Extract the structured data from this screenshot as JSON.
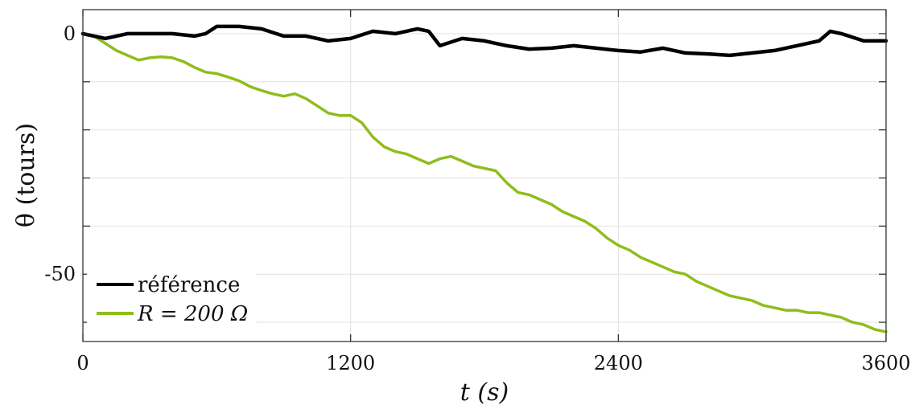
{
  "chart_data": {
    "type": "line",
    "title": "",
    "xlabel": "t (s)",
    "ylabel": "θ (tours)",
    "xlim": [
      0,
      3600
    ],
    "ylim": [
      -64,
      5
    ],
    "xticks": [
      0,
      1200,
      2400,
      3600
    ],
    "xtick_labels": [
      "0",
      "1200",
      "2400",
      "3600"
    ],
    "yticks": [
      0,
      -50
    ],
    "ytick_labels": [
      "0",
      "-50"
    ],
    "grid": true,
    "legend": "bottom-left",
    "series": [
      {
        "name": "référence",
        "color": "#000000",
        "x": [
          0,
          100,
          200,
          300,
          400,
          500,
          550,
          600,
          700,
          800,
          900,
          1000,
          1100,
          1200,
          1300,
          1400,
          1500,
          1550,
          1600,
          1700,
          1800,
          1900,
          2000,
          2100,
          2200,
          2300,
          2400,
          2500,
          2600,
          2700,
          2800,
          2900,
          3000,
          3100,
          3200,
          3300,
          3350,
          3400,
          3500,
          3600
        ],
        "y": [
          0,
          -1,
          0,
          0,
          0,
          -0.5,
          0,
          1.5,
          1.5,
          1,
          -0.5,
          -0.5,
          -1.5,
          -1,
          0.5,
          0,
          1,
          0.5,
          -2.5,
          -1,
          -1.5,
          -2.5,
          -3.2,
          -3,
          -2.5,
          -3,
          -3.5,
          -3.8,
          -3,
          -4,
          -4.2,
          -4.5,
          -4,
          -3.5,
          -2.5,
          -1.5,
          0.5,
          0,
          -1.5,
          -1.5
        ]
      },
      {
        "name": "R = 200 Ω",
        "color": "#8fbd1c",
        "x": [
          0,
          50,
          100,
          150,
          200,
          250,
          300,
          350,
          400,
          450,
          500,
          550,
          600,
          650,
          700,
          750,
          800,
          850,
          900,
          950,
          1000,
          1050,
          1100,
          1150,
          1200,
          1250,
          1300,
          1350,
          1400,
          1450,
          1500,
          1550,
          1600,
          1650,
          1700,
          1750,
          1800,
          1850,
          1900,
          1950,
          2000,
          2050,
          2100,
          2150,
          2200,
          2250,
          2300,
          2350,
          2400,
          2450,
          2500,
          2550,
          2600,
          2650,
          2700,
          2750,
          2800,
          2850,
          2900,
          2950,
          3000,
          3050,
          3100,
          3150,
          3200,
          3250,
          3300,
          3350,
          3400,
          3450,
          3500,
          3550,
          3600
        ],
        "y": [
          0,
          -0.5,
          -2,
          -3.5,
          -4.5,
          -5.5,
          -5,
          -4.8,
          -5,
          -5.8,
          -7,
          -8,
          -8.3,
          -9,
          -9.8,
          -11,
          -11.8,
          -12.5,
          -13,
          -12.5,
          -13.5,
          -15,
          -16.5,
          -17,
          -17,
          -18.5,
          -21.5,
          -23.5,
          -24.5,
          -25,
          -26,
          -27,
          -26,
          -25.5,
          -26.5,
          -27.5,
          -28,
          -28.5,
          -31,
          -33,
          -33.5,
          -34.5,
          -35.5,
          -37,
          -38,
          -39,
          -40.5,
          -42.5,
          -44,
          -45,
          -46.5,
          -47.5,
          -48.5,
          -49.5,
          -50,
          -51.5,
          -52.5,
          -53.5,
          -54.5,
          -55,
          -55.5,
          -56.5,
          -57,
          -57.5,
          -57.5,
          -58,
          -58,
          -58.5,
          -59,
          -60,
          -60.5,
          -61.5,
          -62
        ]
      }
    ]
  }
}
